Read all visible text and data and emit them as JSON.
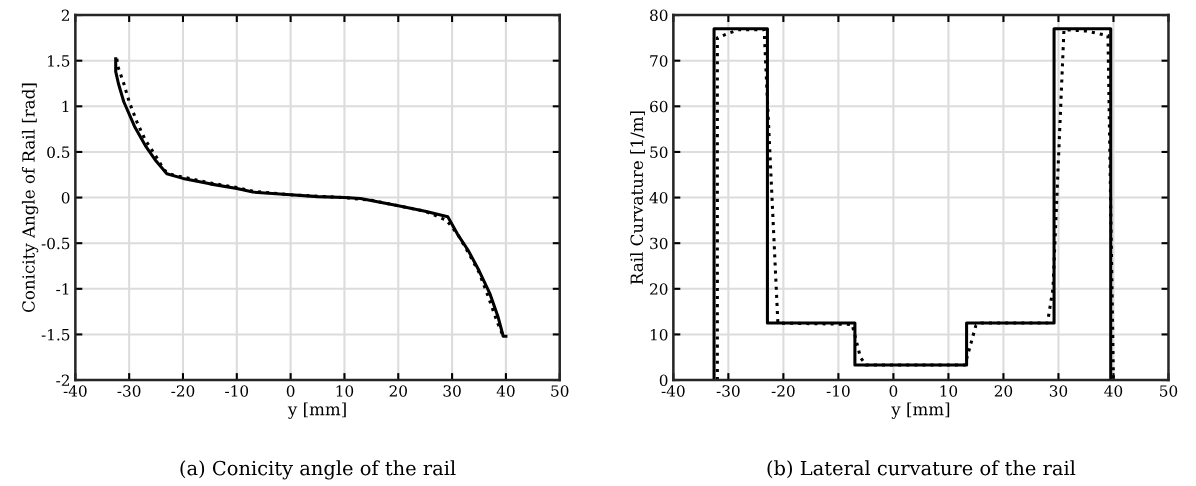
{
  "chart_data": [
    {
      "type": "line",
      "xlabel": "y [mm]",
      "ylabel": "Conicity Angle of Rail [rad]",
      "xlim": [
        -40,
        50
      ],
      "xticks": [
        -40,
        -30,
        -20,
        -10,
        0,
        10,
        20,
        30,
        40,
        50
      ],
      "ylim": [
        -2,
        2
      ],
      "yticks": [
        -2,
        -1.5,
        -1,
        -0.5,
        0,
        0.5,
        1,
        1.5,
        2
      ],
      "grid": true,
      "annotations": [
        "(a) Conicity angle of the rail"
      ],
      "series": [
        {
          "color": "#000000",
          "line_style": "solid",
          "x": [
            -32.5,
            -32.5,
            -32,
            -31,
            -29,
            -27,
            -25,
            -23,
            -20,
            -15,
            -10,
            -7,
            0,
            5,
            10,
            13,
            20,
            25,
            29.2,
            31,
            33,
            35,
            37,
            38.5,
            39.5,
            40
          ],
          "values": [
            1.52,
            1.38,
            1.25,
            1.05,
            0.78,
            0.57,
            0.4,
            0.26,
            0.21,
            0.15,
            0.1,
            0.06,
            0.03,
            0.01,
            0,
            -0.01,
            -0.09,
            -0.15,
            -0.21,
            -0.4,
            -0.58,
            -0.8,
            -1.05,
            -1.3,
            -1.52,
            -1.52
          ]
        },
        {
          "color": "#000000",
          "line_style": "dotted",
          "x": [
            -32.3,
            -32,
            -31,
            -30,
            -28.5,
            -27,
            -25,
            -23.5,
            -22,
            -15,
            -10,
            -7,
            0,
            10,
            15,
            20,
            25,
            29,
            31,
            33,
            35,
            36.5,
            37.7,
            38.5,
            39.5
          ],
          "values": [
            1.52,
            1.42,
            1.25,
            1.05,
            0.82,
            0.63,
            0.45,
            0.3,
            0.25,
            0.16,
            0.11,
            0.07,
            0.03,
            0,
            -0.03,
            -0.09,
            -0.15,
            -0.25,
            -0.4,
            -0.6,
            -0.82,
            -1.05,
            -1.25,
            -1.38,
            -1.52
          ]
        }
      ]
    },
    {
      "type": "line",
      "xlabel": "y [mm]",
      "ylabel": "Rail Curvature [1/m]",
      "xlim": [
        -40,
        50
      ],
      "xticks": [
        -40,
        -30,
        -20,
        -10,
        0,
        10,
        20,
        30,
        40,
        50
      ],
      "ylim": [
        0,
        80
      ],
      "yticks": [
        0,
        10,
        20,
        30,
        40,
        50,
        60,
        70,
        80
      ],
      "grid": true,
      "annotations": [
        "(b) Lateral curvature of the rail"
      ],
      "series": [
        {
          "color": "#000000",
          "line_style": "solid",
          "x": [
            -32.6,
            -32.6,
            -22.9,
            -22.9,
            -7,
            -7,
            13.3,
            13.3,
            29.2,
            29.2,
            39.5,
            39.5
          ],
          "values": [
            0,
            77,
            77,
            12.5,
            12.5,
            3.3,
            3.3,
            12.5,
            12.5,
            77,
            77,
            0
          ]
        },
        {
          "color": "#000000",
          "line_style": "dotted",
          "x": [
            -32,
            -32,
            -30,
            -28,
            -23.5,
            -21,
            -7.5,
            -6,
            -5,
            13,
            15,
            16,
            28,
            29,
            31,
            35,
            39,
            40
          ],
          "values": [
            0,
            75,
            76,
            76.8,
            76.8,
            12.5,
            12.2,
            5,
            3.3,
            3.3,
            12,
            12.5,
            12.5,
            20,
            76.8,
            76.5,
            75.5,
            0
          ]
        }
      ]
    }
  ]
}
